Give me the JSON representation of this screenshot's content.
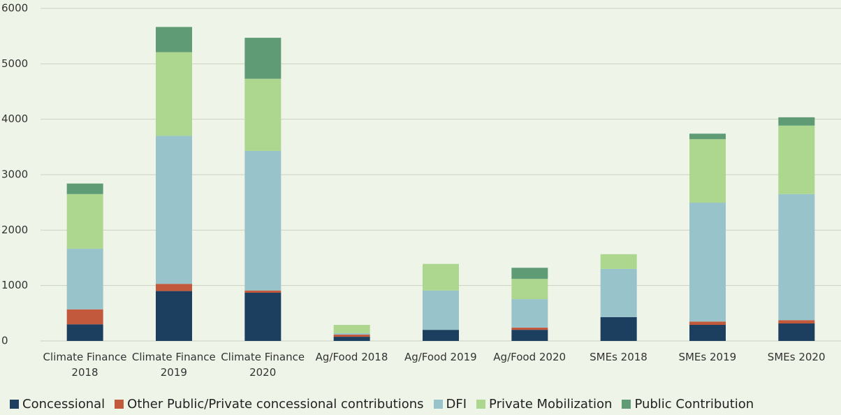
{
  "chart_data": {
    "type": "stacked_bar",
    "categories": [
      "Climate Finance 2018",
      "Climate Finance 2019",
      "Climate Finance 2020",
      "Ag/Food 2018",
      "Ag/Food 2019",
      "Ag/Food 2020",
      "SMEs 2018",
      "SMEs 2019",
      "SMEs 2020"
    ],
    "series": [
      {
        "name": "Concessional",
        "color": "#1c3f5f",
        "values": [
          300,
          900,
          870,
          75,
          200,
          200,
          430,
          290,
          315
        ]
      },
      {
        "name": "Other Public/Private concessional contributions",
        "color": "#c2593d",
        "values": [
          270,
          130,
          40,
          40,
          0,
          40,
          0,
          60,
          60
        ]
      },
      {
        "name": "DFI",
        "color": "#99c3ca",
        "values": [
          1095,
          2670,
          2520,
          25,
          710,
          515,
          870,
          2145,
          2275
        ]
      },
      {
        "name": "Private Mobilization",
        "color": "#add68f",
        "values": [
          985,
          1510,
          1300,
          150,
          480,
          365,
          265,
          1145,
          1235
        ]
      },
      {
        "name": "Public Contribution",
        "color": "#5f9c75",
        "values": [
          190,
          455,
          740,
          0,
          0,
          200,
          0,
          100,
          150
        ]
      }
    ],
    "ylim": [
      0,
      6000
    ],
    "yticks": [
      0,
      1000,
      2000,
      3000,
      4000,
      5000,
      6000
    ],
    "grid": true
  }
}
